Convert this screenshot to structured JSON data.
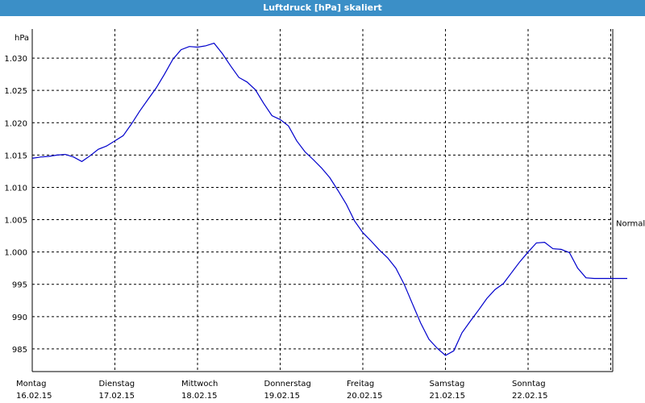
{
  "window": {
    "title": "Luftdruck [hPa] skaliert"
  },
  "colors": {
    "titlebar": "#3b8fc7",
    "line": "#0000cc",
    "grid": "#000000",
    "background": "#ffffff"
  },
  "chart_data": {
    "type": "line",
    "title": "Luftdruck [hPa] skaliert",
    "ylabel": "hPa",
    "xlabel": "",
    "ylim": [
      981.5,
      1034.5
    ],
    "xlim": [
      0,
      7.2
    ],
    "grid": true,
    "y_ticks": [
      {
        "value": 985,
        "label": "985"
      },
      {
        "value": 990,
        "label": "990"
      },
      {
        "value": 995,
        "label": "995"
      },
      {
        "value": 1000,
        "label": "1.000"
      },
      {
        "value": 1005,
        "label": "1.005"
      },
      {
        "value": 1010,
        "label": "1.010"
      },
      {
        "value": 1015,
        "label": "1.015"
      },
      {
        "value": 1020,
        "label": "1.020"
      },
      {
        "value": 1025,
        "label": "1.025"
      },
      {
        "value": 1030,
        "label": "1.030"
      }
    ],
    "x_ticks": [
      {
        "day": "Montag",
        "date": "16.02.15"
      },
      {
        "day": "Dienstag",
        "date": "17.02.15"
      },
      {
        "day": "Mittwoch",
        "date": "18.02.15"
      },
      {
        "day": "Donnerstag",
        "date": "19.02.15"
      },
      {
        "day": "Freitag",
        "date": "20.02.15"
      },
      {
        "day": "Samstag",
        "date": "21.02.15"
      },
      {
        "day": "Sonntag",
        "date": "22.02.15"
      }
    ],
    "reference_line": {
      "label": "Normal",
      "value": 1004.5
    },
    "series": [
      {
        "x": [
          0,
          0.1,
          0.2,
          0.3,
          0.4,
          0.5,
          0.6,
          0.7,
          0.8,
          0.9,
          1.0,
          1.1,
          1.2,
          1.3,
          1.4,
          1.5,
          1.6,
          1.7,
          1.8,
          1.9,
          2.0,
          2.1,
          2.2,
          2.3,
          2.4,
          2.5,
          2.6,
          2.7,
          2.8,
          2.9,
          3.0,
          3.1,
          3.2,
          3.3,
          3.4,
          3.5,
          3.6,
          3.7,
          3.8,
          3.9,
          4.0,
          4.1,
          4.2,
          4.3,
          4.4,
          4.5,
          4.6,
          4.7,
          4.8,
          4.9,
          5.0,
          5.1,
          5.2,
          5.3,
          5.4,
          5.5,
          5.6,
          5.7,
          5.8,
          5.9,
          6.0,
          6.1,
          6.2,
          6.3,
          6.4,
          6.5,
          6.6,
          6.7,
          6.8,
          6.9,
          7.0,
          7.1,
          7.2
        ],
        "values": [
          1014.5,
          1014.7,
          1014.8,
          1015.0,
          1015.1,
          1014.7,
          1014.0,
          1014.9,
          1015.9,
          1016.4,
          1017.2,
          1018.0,
          1019.8,
          1021.8,
          1023.6,
          1025.4,
          1027.5,
          1029.8,
          1031.3,
          1031.8,
          1031.7,
          1031.9,
          1032.3,
          1030.7,
          1028.8,
          1027.0,
          1026.3,
          1025.1,
          1023.0,
          1021.1,
          1020.5,
          1019.5,
          1017.2,
          1015.5,
          1014.3,
          1013.0,
          1011.5,
          1009.5,
          1007.4,
          1004.8,
          1003.0,
          1001.7,
          1000.3,
          999.1,
          997.5,
          995.0,
          992.0,
          989.0,
          986.5,
          985.1,
          984.0,
          984.7,
          987.5,
          989.3,
          991.0,
          992.8,
          994.2,
          995.1,
          996.8,
          998.5,
          1000.0,
          1001.4,
          1001.5,
          1000.5,
          1000.4,
          999.9,
          997.5,
          996.0,
          995.9,
          995.9,
          995.9,
          995.9,
          995.9
        ]
      }
    ]
  }
}
